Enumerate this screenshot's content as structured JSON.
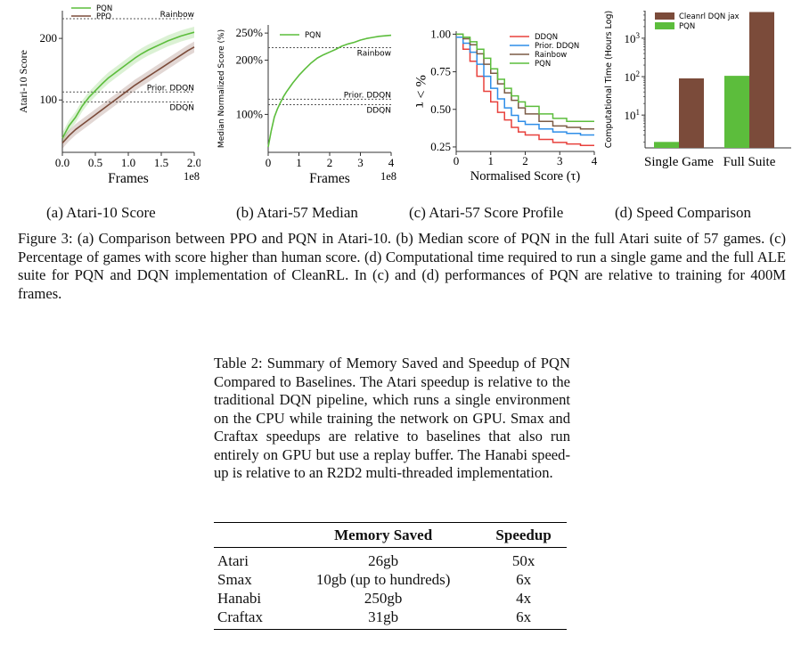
{
  "figure": {
    "subcaptions": [
      "(a) Atari-10 Score",
      "(b) Atari-57 Median",
      "(c) Atari-57 Score Profile",
      "(d) Speed Comparison"
    ],
    "caption": "Figure 3: (a) Comparison between PPO and PQN in Atari-10. (b) Median score of PQN in the full Atari suite of 57 games. (c) Percentage of games with score higher than human score. (d) Computational time required to run a single game and the full ALE suite for PQN and DQN implementation of CleanRL. In (c) and (d) performances of PQN are relative to training for 400M frames."
  },
  "chart_data": [
    {
      "type": "line",
      "xlabel": "Frames",
      "x_multiplier": "1e8",
      "ylabel": "Atari-10 Score",
      "xticks": [
        "0.0",
        "0.5",
        "1.0",
        "1.5",
        "2.0"
      ],
      "yticks": [
        "100",
        "200"
      ],
      "xlim": [
        0,
        2.0
      ],
      "ylim": [
        15,
        245
      ],
      "legend_position": "top-left",
      "series": [
        {
          "name": "PQN",
          "color": "#5cbd3c",
          "x": [
            0,
            0.1,
            0.2,
            0.3,
            0.4,
            0.5,
            0.6,
            0.7,
            0.8,
            0.9,
            1.0,
            1.1,
            1.2,
            1.3,
            1.4,
            1.5,
            1.6,
            1.7,
            1.8,
            1.9,
            2.0
          ],
          "y": [
            38,
            58,
            72,
            90,
            104,
            115,
            126,
            136,
            144,
            152,
            160,
            168,
            175,
            181,
            186,
            191,
            196,
            200,
            204,
            207,
            210
          ]
        },
        {
          "name": "PPO",
          "color": "#7b4b3a",
          "x": [
            0,
            0.1,
            0.2,
            0.3,
            0.4,
            0.5,
            0.6,
            0.7,
            0.8,
            0.9,
            1.0,
            1.1,
            1.2,
            1.3,
            1.4,
            1.5,
            1.6,
            1.7,
            1.8,
            1.9,
            2.0
          ],
          "y": [
            30,
            42,
            52,
            60,
            68,
            76,
            84,
            92,
            100,
            108,
            116,
            124,
            131,
            138,
            145,
            152,
            159,
            166,
            173,
            180,
            186
          ]
        }
      ],
      "reference_lines": [
        {
          "label": "Rainbow",
          "y": 232
        },
        {
          "label": "Prior. DDQN",
          "y": 113
        },
        {
          "label": "DDQN",
          "y": 97
        }
      ]
    },
    {
      "type": "line",
      "xlabel": "Frames",
      "x_multiplier": "1e8",
      "ylabel": "Median Normalized Score (%)",
      "xticks": [
        "0",
        "1",
        "2",
        "3",
        "4"
      ],
      "yticks": [
        "100%",
        "200%",
        "250%"
      ],
      "xlim": [
        0,
        4
      ],
      "ylim": [
        30,
        265
      ],
      "legend_position": "top-left",
      "series": [
        {
          "name": "PQN",
          "color": "#5cbd3c",
          "x": [
            0,
            0.1,
            0.2,
            0.3,
            0.4,
            0.5,
            0.6,
            0.7,
            0.8,
            0.9,
            1.0,
            1.2,
            1.4,
            1.6,
            1.8,
            2.0,
            2.2,
            2.4,
            2.6,
            2.8,
            3.0,
            3.2,
            3.4,
            3.6,
            3.8,
            4.0
          ],
          "y": [
            40,
            70,
            95,
            110,
            122,
            133,
            142,
            150,
            158,
            165,
            172,
            184,
            195,
            204,
            210,
            215,
            220,
            226,
            230,
            233,
            237,
            240,
            242,
            244,
            245,
            246
          ]
        }
      ],
      "reference_lines": [
        {
          "label": "Rainbow",
          "y": 223
        },
        {
          "label": "Prior. DDQN",
          "y": 128
        },
        {
          "label": "DDQN",
          "y": 118
        }
      ]
    },
    {
      "type": "line",
      "xlabel": "Normalised Score (τ)",
      "ylabel": "% > τ",
      "xticks": [
        "0",
        "1",
        "2",
        "3",
        "4"
      ],
      "yticks": [
        "0.25",
        "0.50",
        "0.75",
        "1.00"
      ],
      "xlim": [
        0,
        4
      ],
      "ylim": [
        0.22,
        1.02
      ],
      "legend_position": "top-right",
      "series": [
        {
          "name": "DDQN",
          "color": "#e8413c",
          "x": [
            0,
            0.2,
            0.4,
            0.6,
            0.8,
            1.0,
            1.2,
            1.4,
            1.6,
            1.8,
            2.0,
            2.4,
            2.8,
            3.2,
            3.6,
            4.0
          ],
          "y": [
            0.98,
            0.9,
            0.82,
            0.72,
            0.62,
            0.55,
            0.48,
            0.43,
            0.38,
            0.35,
            0.33,
            0.3,
            0.28,
            0.27,
            0.26,
            0.26
          ]
        },
        {
          "name": "Prior. DDQN",
          "color": "#2f8ee8",
          "x": [
            0,
            0.2,
            0.4,
            0.6,
            0.8,
            1.0,
            1.2,
            1.4,
            1.6,
            1.8,
            2.0,
            2.4,
            2.8,
            3.2,
            3.6,
            4.0
          ],
          "y": [
            0.98,
            0.94,
            0.88,
            0.8,
            0.72,
            0.64,
            0.57,
            0.51,
            0.46,
            0.42,
            0.4,
            0.37,
            0.35,
            0.34,
            0.33,
            0.33
          ]
        },
        {
          "name": "Rainbow",
          "color": "#7b5b45",
          "x": [
            0,
            0.2,
            0.4,
            0.6,
            0.8,
            1.0,
            1.2,
            1.4,
            1.6,
            1.8,
            2.0,
            2.4,
            2.8,
            3.2,
            3.6,
            4.0
          ],
          "y": [
            1.0,
            0.97,
            0.93,
            0.87,
            0.8,
            0.74,
            0.67,
            0.61,
            0.56,
            0.51,
            0.47,
            0.42,
            0.39,
            0.38,
            0.37,
            0.37
          ]
        },
        {
          "name": "PQN",
          "color": "#5cbd3c",
          "x": [
            0,
            0.2,
            0.4,
            0.6,
            0.8,
            1.0,
            1.2,
            1.4,
            1.6,
            1.8,
            2.0,
            2.4,
            2.8,
            3.2,
            3.6,
            4.0
          ],
          "y": [
            1.0,
            0.98,
            0.95,
            0.9,
            0.84,
            0.77,
            0.7,
            0.64,
            0.59,
            0.55,
            0.52,
            0.47,
            0.44,
            0.42,
            0.42,
            0.42
          ]
        }
      ]
    },
    {
      "type": "bar",
      "ylabel": "Computational Time (Hours Log)",
      "yscale": "log",
      "yticks": [
        "10^1",
        "10^2",
        "10^3"
      ],
      "ylim": [
        1.4,
        5200
      ],
      "categories": [
        "Single Game",
        "Full Suite"
      ],
      "legend_position": "top-left",
      "series": [
        {
          "name": "Cleanrl DQN jax",
          "color": "#7b4b3a",
          "values": [
            90,
            4800
          ]
        },
        {
          "name": "PQN",
          "color": "#5cbd3c",
          "values": [
            2,
            105
          ]
        }
      ]
    }
  ],
  "table": {
    "caption": "Table 2: Summary of Memory Saved and Speedup of PQN Compared to Baselines. The Atari speedup is relative to the traditional DQN pipeline, which runs a single environment on the CPU while training the network on GPU. Smax and Craftax speedups are relative to baselines that also run entirely on GPU but use a replay buffer. The Hanabi speed-up is relative to an R2D2 multi-threaded implementation.",
    "headers": [
      "",
      "Memory Saved",
      "Speedup"
    ],
    "rows": [
      [
        "Atari",
        "26gb",
        "50x"
      ],
      [
        "Smax",
        "10gb (up to hundreds)",
        "6x"
      ],
      [
        "Hanabi",
        "250gb",
        "4x"
      ],
      [
        "Craftax",
        "31gb",
        "6x"
      ]
    ]
  }
}
